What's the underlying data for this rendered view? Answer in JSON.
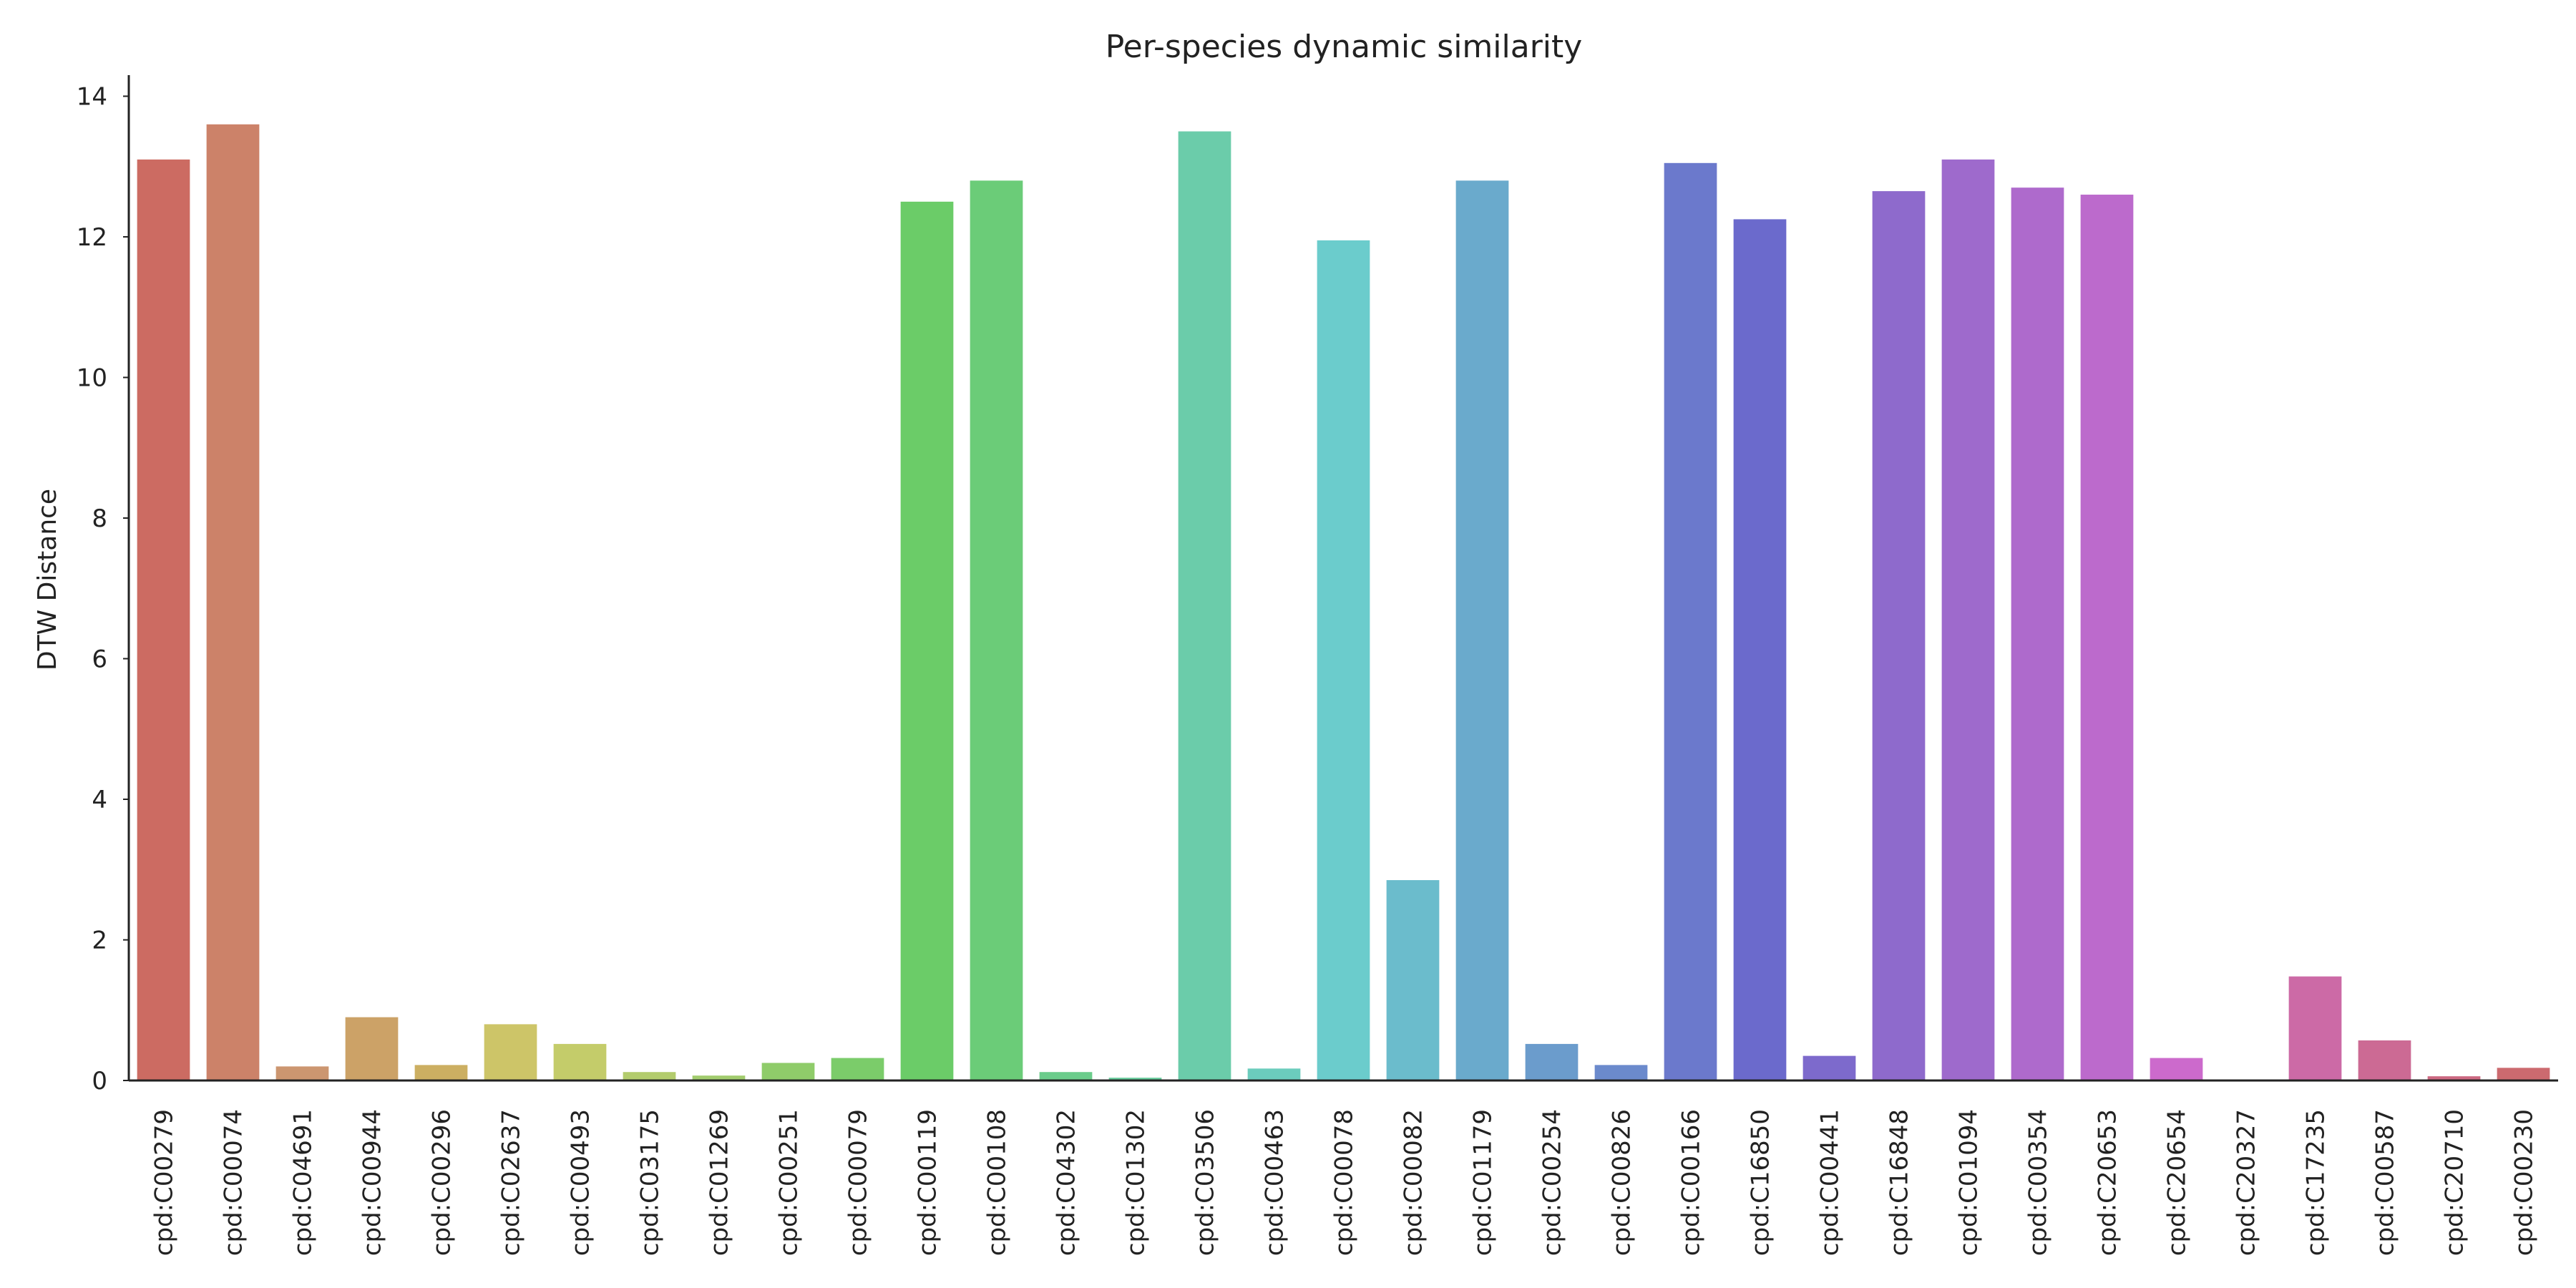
{
  "chart_data": {
    "type": "bar",
    "title": "Per-species dynamic similarity",
    "xlabel": "",
    "ylabel": "DTW Distance",
    "ylim": [
      0,
      14.3
    ],
    "yticks": [
      0,
      2,
      4,
      6,
      8,
      10,
      12,
      14
    ],
    "grid": false,
    "legend": "none",
    "categories": [
      "cpd:C00279",
      "cpd:C00074",
      "cpd:C04691",
      "cpd:C00944",
      "cpd:C00296",
      "cpd:C02637",
      "cpd:C00493",
      "cpd:C03175",
      "cpd:C01269",
      "cpd:C00251",
      "cpd:C00079",
      "cpd:C00119",
      "cpd:C00108",
      "cpd:C04302",
      "cpd:C01302",
      "cpd:C03506",
      "cpd:C00463",
      "cpd:C00078",
      "cpd:C00082",
      "cpd:C01179",
      "cpd:C00254",
      "cpd:C00826",
      "cpd:C00166",
      "cpd:C16850",
      "cpd:C00441",
      "cpd:C16848",
      "cpd:C01094",
      "cpd:C00354",
      "cpd:C20653",
      "cpd:C20654",
      "cpd:C20327",
      "cpd:C17235",
      "cpd:C00587",
      "cpd:C20710",
      "cpd:C00230"
    ],
    "values": [
      13.1,
      13.6,
      0.2,
      0.9,
      0.22,
      0.8,
      0.52,
      0.12,
      0.07,
      0.25,
      0.32,
      12.5,
      12.8,
      0.12,
      0.04,
      13.5,
      0.17,
      11.95,
      2.85,
      12.8,
      0.52,
      0.22,
      13.05,
      12.25,
      0.35,
      12.65,
      13.1,
      12.7,
      12.6,
      0.32,
      0.0,
      1.48,
      0.57,
      0.06,
      0.18
    ],
    "colors": [
      "#cc6b62",
      "#cc8269",
      "#cc9670",
      "#cca267",
      "#ccaf62",
      "#cdc568",
      "#c4cc6a",
      "#b3cc6d",
      "#a2cc6e",
      "#8fcc6a",
      "#7bcc6a",
      "#6bcc68",
      "#6bcc78",
      "#6bcc8b",
      "#6bcc9e",
      "#6bccaa",
      "#6bccbd",
      "#6bcccc",
      "#6bbccc",
      "#6aaacc",
      "#6b9ccc",
      "#6b8acc",
      "#6b79cc",
      "#6b6acc",
      "#7d6acc",
      "#8e6acc",
      "#9e6acc",
      "#ae6acc",
      "#bc6acc",
      "#cc6acc",
      "#cc6aba",
      "#cc6aa6",
      "#cc6a94",
      "#cc6a82",
      "#cc6a6f"
    ]
  }
}
